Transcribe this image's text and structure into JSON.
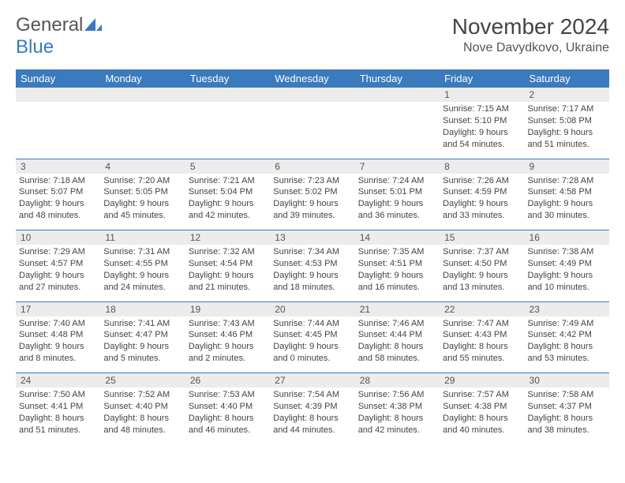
{
  "logo": {
    "text_general": "General",
    "text_blue": "Blue",
    "icon_color": "#3a7abd"
  },
  "header": {
    "month_title": "November 2024",
    "location": "Nove Davydkovo, Ukraine"
  },
  "colors": {
    "header_bg": "#3a7abd",
    "header_text": "#ffffff",
    "daynum_bg": "#ececec",
    "daynum_text": "#555555",
    "body_text": "#444444",
    "rule": "#3a7abd",
    "page_bg": "#ffffff"
  },
  "typography": {
    "month_title_fontsize": 28,
    "location_fontsize": 16,
    "dayheader_fontsize": 13,
    "daynum_fontsize": 12,
    "cell_fontsize": 11
  },
  "day_headers": [
    "Sunday",
    "Monday",
    "Tuesday",
    "Wednesday",
    "Thursday",
    "Friday",
    "Saturday"
  ],
  "weeks": [
    [
      {
        "num": "",
        "sunrise": "",
        "sunset": "",
        "daylight": ""
      },
      {
        "num": "",
        "sunrise": "",
        "sunset": "",
        "daylight": ""
      },
      {
        "num": "",
        "sunrise": "",
        "sunset": "",
        "daylight": ""
      },
      {
        "num": "",
        "sunrise": "",
        "sunset": "",
        "daylight": ""
      },
      {
        "num": "",
        "sunrise": "",
        "sunset": "",
        "daylight": ""
      },
      {
        "num": "1",
        "sunrise": "Sunrise: 7:15 AM",
        "sunset": "Sunset: 5:10 PM",
        "daylight": "Daylight: 9 hours and 54 minutes."
      },
      {
        "num": "2",
        "sunrise": "Sunrise: 7:17 AM",
        "sunset": "Sunset: 5:08 PM",
        "daylight": "Daylight: 9 hours and 51 minutes."
      }
    ],
    [
      {
        "num": "3",
        "sunrise": "Sunrise: 7:18 AM",
        "sunset": "Sunset: 5:07 PM",
        "daylight": "Daylight: 9 hours and 48 minutes."
      },
      {
        "num": "4",
        "sunrise": "Sunrise: 7:20 AM",
        "sunset": "Sunset: 5:05 PM",
        "daylight": "Daylight: 9 hours and 45 minutes."
      },
      {
        "num": "5",
        "sunrise": "Sunrise: 7:21 AM",
        "sunset": "Sunset: 5:04 PM",
        "daylight": "Daylight: 9 hours and 42 minutes."
      },
      {
        "num": "6",
        "sunrise": "Sunrise: 7:23 AM",
        "sunset": "Sunset: 5:02 PM",
        "daylight": "Daylight: 9 hours and 39 minutes."
      },
      {
        "num": "7",
        "sunrise": "Sunrise: 7:24 AM",
        "sunset": "Sunset: 5:01 PM",
        "daylight": "Daylight: 9 hours and 36 minutes."
      },
      {
        "num": "8",
        "sunrise": "Sunrise: 7:26 AM",
        "sunset": "Sunset: 4:59 PM",
        "daylight": "Daylight: 9 hours and 33 minutes."
      },
      {
        "num": "9",
        "sunrise": "Sunrise: 7:28 AM",
        "sunset": "Sunset: 4:58 PM",
        "daylight": "Daylight: 9 hours and 30 minutes."
      }
    ],
    [
      {
        "num": "10",
        "sunrise": "Sunrise: 7:29 AM",
        "sunset": "Sunset: 4:57 PM",
        "daylight": "Daylight: 9 hours and 27 minutes."
      },
      {
        "num": "11",
        "sunrise": "Sunrise: 7:31 AM",
        "sunset": "Sunset: 4:55 PM",
        "daylight": "Daylight: 9 hours and 24 minutes."
      },
      {
        "num": "12",
        "sunrise": "Sunrise: 7:32 AM",
        "sunset": "Sunset: 4:54 PM",
        "daylight": "Daylight: 9 hours and 21 minutes."
      },
      {
        "num": "13",
        "sunrise": "Sunrise: 7:34 AM",
        "sunset": "Sunset: 4:53 PM",
        "daylight": "Daylight: 9 hours and 18 minutes."
      },
      {
        "num": "14",
        "sunrise": "Sunrise: 7:35 AM",
        "sunset": "Sunset: 4:51 PM",
        "daylight": "Daylight: 9 hours and 16 minutes."
      },
      {
        "num": "15",
        "sunrise": "Sunrise: 7:37 AM",
        "sunset": "Sunset: 4:50 PM",
        "daylight": "Daylight: 9 hours and 13 minutes."
      },
      {
        "num": "16",
        "sunrise": "Sunrise: 7:38 AM",
        "sunset": "Sunset: 4:49 PM",
        "daylight": "Daylight: 9 hours and 10 minutes."
      }
    ],
    [
      {
        "num": "17",
        "sunrise": "Sunrise: 7:40 AM",
        "sunset": "Sunset: 4:48 PM",
        "daylight": "Daylight: 9 hours and 8 minutes."
      },
      {
        "num": "18",
        "sunrise": "Sunrise: 7:41 AM",
        "sunset": "Sunset: 4:47 PM",
        "daylight": "Daylight: 9 hours and 5 minutes."
      },
      {
        "num": "19",
        "sunrise": "Sunrise: 7:43 AM",
        "sunset": "Sunset: 4:46 PM",
        "daylight": "Daylight: 9 hours and 2 minutes."
      },
      {
        "num": "20",
        "sunrise": "Sunrise: 7:44 AM",
        "sunset": "Sunset: 4:45 PM",
        "daylight": "Daylight: 9 hours and 0 minutes."
      },
      {
        "num": "21",
        "sunrise": "Sunrise: 7:46 AM",
        "sunset": "Sunset: 4:44 PM",
        "daylight": "Daylight: 8 hours and 58 minutes."
      },
      {
        "num": "22",
        "sunrise": "Sunrise: 7:47 AM",
        "sunset": "Sunset: 4:43 PM",
        "daylight": "Daylight: 8 hours and 55 minutes."
      },
      {
        "num": "23",
        "sunrise": "Sunrise: 7:49 AM",
        "sunset": "Sunset: 4:42 PM",
        "daylight": "Daylight: 8 hours and 53 minutes."
      }
    ],
    [
      {
        "num": "24",
        "sunrise": "Sunrise: 7:50 AM",
        "sunset": "Sunset: 4:41 PM",
        "daylight": "Daylight: 8 hours and 51 minutes."
      },
      {
        "num": "25",
        "sunrise": "Sunrise: 7:52 AM",
        "sunset": "Sunset: 4:40 PM",
        "daylight": "Daylight: 8 hours and 48 minutes."
      },
      {
        "num": "26",
        "sunrise": "Sunrise: 7:53 AM",
        "sunset": "Sunset: 4:40 PM",
        "daylight": "Daylight: 8 hours and 46 minutes."
      },
      {
        "num": "27",
        "sunrise": "Sunrise: 7:54 AM",
        "sunset": "Sunset: 4:39 PM",
        "daylight": "Daylight: 8 hours and 44 minutes."
      },
      {
        "num": "28",
        "sunrise": "Sunrise: 7:56 AM",
        "sunset": "Sunset: 4:38 PM",
        "daylight": "Daylight: 8 hours and 42 minutes."
      },
      {
        "num": "29",
        "sunrise": "Sunrise: 7:57 AM",
        "sunset": "Sunset: 4:38 PM",
        "daylight": "Daylight: 8 hours and 40 minutes."
      },
      {
        "num": "30",
        "sunrise": "Sunrise: 7:58 AM",
        "sunset": "Sunset: 4:37 PM",
        "daylight": "Daylight: 8 hours and 38 minutes."
      }
    ]
  ]
}
